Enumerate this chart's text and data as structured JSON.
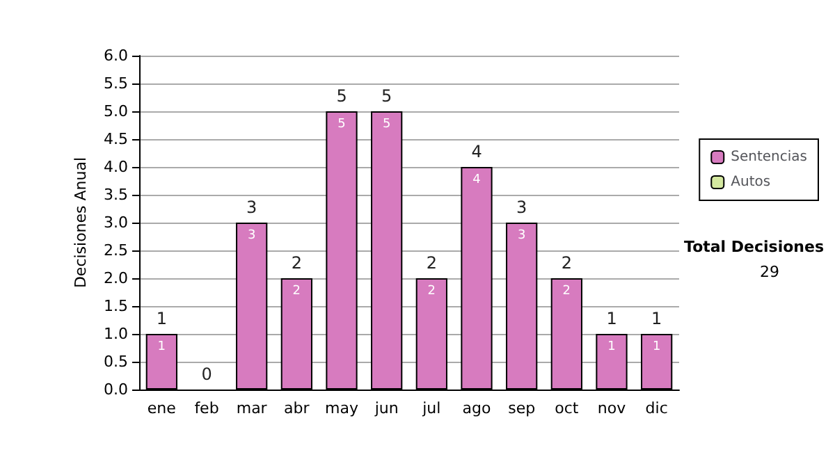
{
  "chart_data": {
    "type": "bar",
    "stacked": true,
    "ylabel": "Decisiones Anual",
    "categories": [
      "ene",
      "feb",
      "mar",
      "abr",
      "may",
      "jun",
      "jul",
      "ago",
      "sep",
      "oct",
      "nov",
      "dic"
    ],
    "series": [
      {
        "name": "Sentencias",
        "color": "#d77bbf",
        "values": [
          1,
          0,
          3,
          2,
          5,
          5,
          2,
          4,
          3,
          2,
          1,
          1
        ],
        "value_labels": [
          "1",
          null,
          "3",
          "2",
          "5",
          "5",
          "2",
          "4",
          "3",
          "2",
          "1",
          "1"
        ]
      },
      {
        "name": "Autos",
        "color": "#d4e8a0",
        "values": [
          0,
          0,
          0,
          0,
          0,
          0,
          0,
          0,
          0,
          0,
          0,
          0
        ]
      }
    ],
    "totals": [
      "1",
      "0",
      "3",
      "2",
      "5",
      "5",
      "2",
      "4",
      "3",
      "2",
      "1",
      "1"
    ],
    "ylim": [
      0,
      6
    ],
    "yticks": [
      {
        "value": 0,
        "label": "0.0"
      },
      0.5,
      {
        "value": 1,
        "label": "1.0"
      },
      1.5,
      {
        "value": 2,
        "label": "2.0"
      },
      2.5,
      {
        "value": 3,
        "label": "3.0"
      },
      3.5,
      {
        "value": 4,
        "label": "4.0"
      },
      4.5,
      {
        "value": 5,
        "label": "5.0"
      },
      5.5,
      {
        "value": 6,
        "label": "6.0"
      }
    ],
    "grid": "y",
    "legend": "right",
    "annotations": [
      "Total Decisiones",
      "29"
    ]
  }
}
